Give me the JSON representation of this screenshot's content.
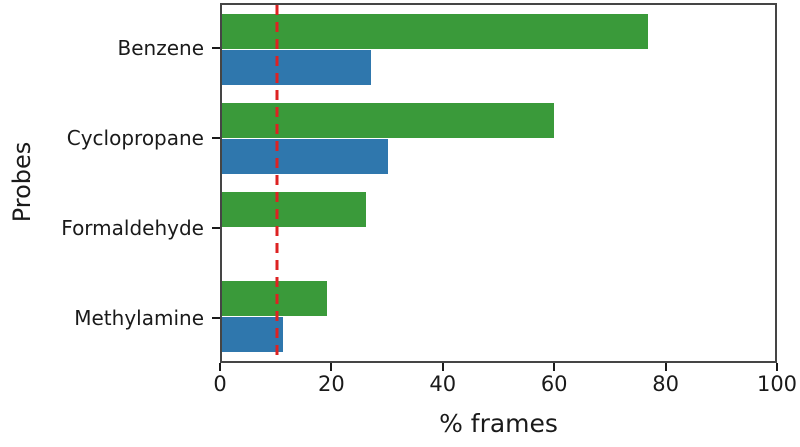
{
  "chart_data": {
    "type": "bar",
    "orientation": "horizontal",
    "title": "",
    "xlabel": "% frames",
    "ylabel": "Probes",
    "xlim": [
      0,
      100
    ],
    "xticks": [
      0,
      20,
      40,
      60,
      80,
      100
    ],
    "grid": false,
    "legend": "none",
    "categories": [
      "Benzene",
      "Cyclopropane",
      "Formaldehyde",
      "Methylamine"
    ],
    "series": [
      {
        "name": "green-series",
        "color": "#3a9a3a",
        "values": [
          77,
          60,
          26,
          19
        ]
      },
      {
        "name": "blue-series",
        "color": "#2f77ad",
        "values": [
          27,
          30,
          0,
          11
        ]
      }
    ],
    "threshold_line": {
      "x": 10,
      "color": "#dd2222",
      "style": "dashed"
    }
  },
  "colors": {
    "axis": "#454545",
    "tick": "#1a1a1a",
    "text": "#1a1a1a",
    "background": "#ffffff"
  }
}
